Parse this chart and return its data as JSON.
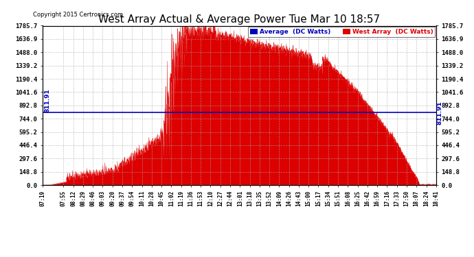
{
  "title": "West Array Actual & Average Power Tue Mar 10 18:57",
  "copyright": "Copyright 2015 Certronics.com",
  "average_value": 811.91,
  "ymax": 1785.7,
  "ymin": 0.0,
  "yticks": [
    0.0,
    148.8,
    297.6,
    446.4,
    595.2,
    744.0,
    892.8,
    1041.6,
    1190.4,
    1339.2,
    1488.0,
    1636.9,
    1785.7
  ],
  "xtick_labels": [
    "07:19",
    "07:55",
    "08:12",
    "08:29",
    "08:46",
    "09:03",
    "09:20",
    "09:37",
    "09:54",
    "10:11",
    "10:28",
    "10:45",
    "11:02",
    "11:19",
    "11:36",
    "11:53",
    "12:10",
    "12:27",
    "12:44",
    "13:01",
    "13:18",
    "13:35",
    "13:52",
    "14:09",
    "14:26",
    "14:43",
    "15:00",
    "15:17",
    "15:34",
    "15:51",
    "16:08",
    "16:25",
    "16:42",
    "16:59",
    "17:16",
    "17:33",
    "17:50",
    "18:07",
    "18:24",
    "18:41"
  ],
  "legend_avg_color": "#0000bb",
  "legend_west_color": "#dd0000",
  "fill_color": "#dd0000",
  "avg_line_color": "#0000bb",
  "background_color": "#ffffff",
  "grid_color": "#aaaaaa",
  "title_fontsize": 11,
  "avg_annotation": "811.91"
}
